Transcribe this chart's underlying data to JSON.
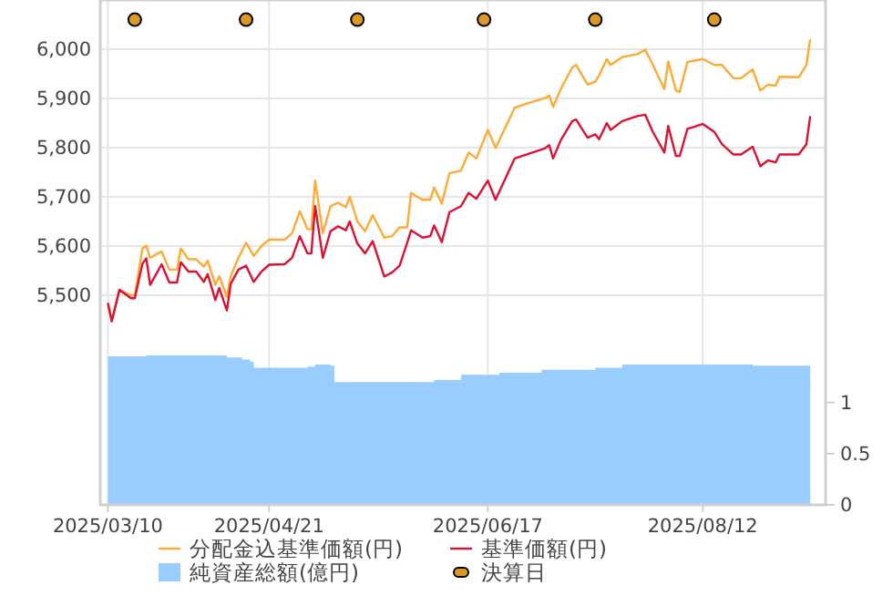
{
  "chart_data": {
    "type": "line",
    "x": [
      "2025-03-10",
      "2025-03-11",
      "2025-03-13",
      "2025-03-16",
      "2025-03-17",
      "2025-03-19",
      "2025-03-20",
      "2025-03-21",
      "2025-03-24",
      "2025-03-26",
      "2025-03-28",
      "2025-03-29",
      "2025-03-31",
      "2025-04-02",
      "2025-04-04",
      "2025-04-05",
      "2025-04-07",
      "2025-04-08",
      "2025-04-10",
      "2025-04-11",
      "2025-04-13",
      "2025-04-15",
      "2025-04-17",
      "2025-04-19",
      "2025-04-21",
      "2025-04-25",
      "2025-04-27",
      "2025-04-29",
      "2025-05-01",
      "2025-05-02",
      "2025-05-03",
      "2025-05-05",
      "2025-05-07",
      "2025-05-09",
      "2025-05-11",
      "2025-05-12",
      "2025-05-14",
      "2025-05-16",
      "2025-05-18",
      "2025-05-21",
      "2025-05-23",
      "2025-05-25",
      "2025-05-27",
      "2025-05-28",
      "2025-05-31",
      "2025-06-02",
      "2025-06-03",
      "2025-06-05",
      "2025-06-07",
      "2025-06-10",
      "2025-06-12",
      "2025-06-14",
      "2025-06-17",
      "2025-06-19",
      "2025-06-24",
      "2025-06-27",
      "2025-07-02",
      "2025-07-03",
      "2025-07-04",
      "2025-07-06",
      "2025-07-09",
      "2025-07-10",
      "2025-07-13",
      "2025-07-15",
      "2025-07-16",
      "2025-07-18",
      "2025-07-19",
      "2025-07-22",
      "2025-07-26",
      "2025-07-28",
      "2025-07-30",
      "2025-08-02",
      "2025-08-03",
      "2025-08-05",
      "2025-08-06",
      "2025-08-08",
      "2025-08-12",
      "2025-08-15",
      "2025-08-17",
      "2025-08-20",
      "2025-08-22",
      "2025-08-25",
      "2025-08-27",
      "2025-08-29",
      "2025-08-31",
      "2025-09-01",
      "2025-09-06",
      "2025-09-08",
      "2025-09-09"
    ],
    "series": [
      {
        "name": "分配金込基準価額(円)",
        "color": "#ffaa33",
        "values": [
          5484,
          5447,
          5511,
          5500,
          5500,
          5595,
          5601,
          5576,
          5589,
          5552,
          5552,
          5595,
          5573,
          5573,
          5558,
          5570,
          5521,
          5539,
          5496,
          5539,
          5576,
          5607,
          5580,
          5600,
          5613,
          5613,
          5626,
          5671,
          5634,
          5634,
          5733,
          5626,
          5681,
          5688,
          5679,
          5700,
          5650,
          5630,
          5663,
          5617,
          5620,
          5638,
          5638,
          5708,
          5694,
          5694,
          5719,
          5686,
          5748,
          5753,
          5790,
          5778,
          5836,
          5799,
          5881,
          5889,
          5901,
          5906,
          5883,
          5919,
          5963,
          5968,
          5928,
          5934,
          5947,
          5980,
          5968,
          5984,
          5990,
          5999,
          5968,
          5919,
          5975,
          5916,
          5913,
          5974,
          5980,
          5968,
          5968,
          5941,
          5941,
          5959,
          5916,
          5928,
          5926,
          5944,
          5943,
          5968,
          6020
        ]
      },
      {
        "name": "基準価額(円)",
        "color": "#dd1133",
        "values": [
          5484,
          5447,
          5511,
          5494,
          5494,
          5564,
          5575,
          5521,
          5563,
          5526,
          5526,
          5567,
          5548,
          5548,
          5527,
          5543,
          5490,
          5515,
          5469,
          5523,
          5552,
          5560,
          5527,
          5548,
          5562,
          5563,
          5576,
          5620,
          5585,
          5585,
          5681,
          5576,
          5630,
          5640,
          5632,
          5650,
          5605,
          5585,
          5610,
          5538,
          5546,
          5560,
          5607,
          5632,
          5617,
          5620,
          5642,
          5608,
          5669,
          5681,
          5708,
          5696,
          5733,
          5694,
          5778,
          5786,
          5799,
          5805,
          5778,
          5815,
          5854,
          5857,
          5820,
          5827,
          5817,
          5850,
          5836,
          5854,
          5864,
          5867,
          5832,
          5790,
          5844,
          5783,
          5783,
          5838,
          5848,
          5832,
          5807,
          5786,
          5786,
          5802,
          5762,
          5774,
          5770,
          5786,
          5786,
          5807,
          5864
        ]
      },
      {
        "name": "純資産総額(億円)",
        "type": "area",
        "axis": "y2",
        "color": "#99ccff",
        "x": [
          "2025-03-10",
          "2025-03-20",
          "2025-04-10",
          "2025-04-14",
          "2025-04-16",
          "2025-04-17",
          "2025-05-01",
          "2025-05-03",
          "2025-05-07",
          "2025-05-08",
          "2025-05-28",
          "2025-06-03",
          "2025-06-10",
          "2025-06-20",
          "2025-07-01",
          "2025-07-15",
          "2025-07-22",
          "2025-08-12",
          "2025-08-25",
          "2025-09-09"
        ],
        "values": [
          1.45,
          1.46,
          1.44,
          1.42,
          1.4,
          1.34,
          1.35,
          1.37,
          1.36,
          1.2,
          1.2,
          1.22,
          1.27,
          1.29,
          1.32,
          1.34,
          1.37,
          1.37,
          1.36,
          1.37
        ]
      },
      {
        "name": "決算日",
        "type": "scatter",
        "color": "#dd9922",
        "marker": "circle",
        "x": [
          "2025-03-17",
          "2025-04-15",
          "2025-05-14",
          "2025-06-16",
          "2025-07-15",
          "2025-08-15"
        ],
        "values": [
          6060,
          6060,
          6060,
          6060,
          6060,
          6060
        ]
      }
    ],
    "xlim": [
      "2025-03-08",
      "2025-09-13"
    ],
    "xticks": [
      {
        "value": "2025-03-10",
        "label": "2025/03/10"
      },
      {
        "value": "2025-04-21",
        "label": "2025/04/21"
      },
      {
        "value": "2025-06-17",
        "label": "2025/06/17"
      },
      {
        "value": "2025-08-12",
        "label": "2025/08/12"
      }
    ],
    "ylim": [
      5074,
      6100
    ],
    "yticks": [
      {
        "value": 5500,
        "label": "5,500"
      },
      {
        "value": 5600,
        "label": "5,600"
      },
      {
        "value": 5700,
        "label": "5,700"
      },
      {
        "value": 5800,
        "label": "5,800"
      },
      {
        "value": 5900,
        "label": "5,900"
      },
      {
        "value": 6000,
        "label": "6,000"
      }
    ],
    "y2lim": [
      0,
      4.93
    ],
    "y2ticks": [
      0,
      0.5,
      1
    ],
    "grid": true,
    "legend": "bottom"
  }
}
